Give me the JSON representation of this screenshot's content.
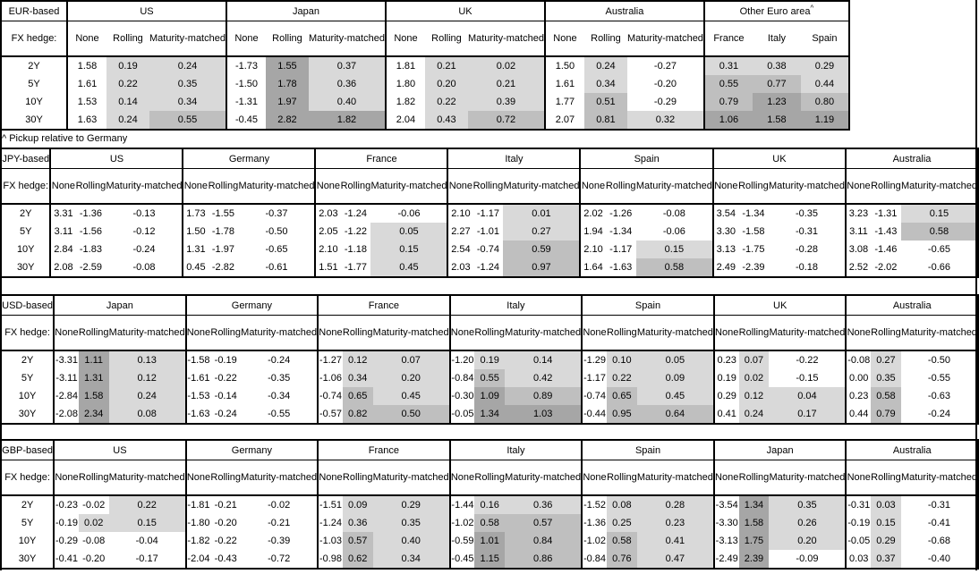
{
  "note": "^ Pickup relative to Germany",
  "hedge_label": "FX hedge:",
  "tenors": [
    "2Y",
    "5Y",
    "10Y",
    "30Y"
  ],
  "heatmap": {
    "light": "#d9d9d9",
    "medium": "#bfbfbf",
    "dark": "#a6a6a6",
    "light_min": 0,
    "medium_min": 0.5,
    "dark_min": 1.0
  },
  "chart_data": [
    {
      "type": "table",
      "base": "EUR-based",
      "blocks": [
        {
          "country": "US",
          "cols": [
            "None",
            "Rolling",
            "Maturity-matched"
          ],
          "shade_from": 1,
          "rows": [
            [
              "1.58",
              "0.19",
              "0.24"
            ],
            [
              "1.61",
              "0.22",
              "0.35"
            ],
            [
              "1.53",
              "0.14",
              "0.34"
            ],
            [
              "1.63",
              "0.24",
              "0.55"
            ]
          ]
        },
        {
          "country": "Japan",
          "cols": [
            "None",
            "Rolling",
            "Maturity-matched"
          ],
          "shade_from": 1,
          "rows": [
            [
              "-1.73",
              "1.55",
              "0.37"
            ],
            [
              "-1.50",
              "1.78",
              "0.36"
            ],
            [
              "-1.31",
              "1.97",
              "0.40"
            ],
            [
              "-0.45",
              "2.82",
              "1.82"
            ]
          ]
        },
        {
          "country": "UK",
          "cols": [
            "None",
            "Rolling",
            "Maturity-matched"
          ],
          "shade_from": 1,
          "rows": [
            [
              "1.81",
              "0.21",
              "0.02"
            ],
            [
              "1.80",
              "0.20",
              "0.21"
            ],
            [
              "1.82",
              "0.22",
              "0.39"
            ],
            [
              "2.04",
              "0.43",
              "0.72"
            ]
          ]
        },
        {
          "country": "Australia",
          "cols": [
            "None",
            "Rolling",
            "Maturity-matched"
          ],
          "shade_from": 1,
          "rows": [
            [
              "1.50",
              "0.24",
              "-0.27"
            ],
            [
              "1.61",
              "0.34",
              "-0.20"
            ],
            [
              "1.77",
              "0.51",
              "-0.29"
            ],
            [
              "2.07",
              "0.81",
              "0.32"
            ]
          ]
        },
        {
          "country": "Other Euro area",
          "superscript": "^",
          "cols": [
            "France",
            "Italy",
            "Spain"
          ],
          "shade_from": 0,
          "rows": [
            [
              "0.31",
              "0.38",
              "0.29"
            ],
            [
              "0.55",
              "0.77",
              "0.44"
            ],
            [
              "0.79",
              "1.23",
              "0.80"
            ],
            [
              "1.06",
              "1.58",
              "1.19"
            ]
          ]
        }
      ]
    },
    {
      "type": "table",
      "base": "JPY-based",
      "blocks": [
        {
          "country": "US",
          "cols": [
            "None",
            "Rolling",
            "Maturity-matched"
          ],
          "shade_from": 1,
          "rows": [
            [
              "3.31",
              "-1.36",
              "-0.13"
            ],
            [
              "3.11",
              "-1.56",
              "-0.12"
            ],
            [
              "2.84",
              "-1.83",
              "-0.24"
            ],
            [
              "2.08",
              "-2.59",
              "-0.08"
            ]
          ]
        },
        {
          "country": "Germany",
          "cols": [
            "None",
            "Rolling",
            "Maturity-matched"
          ],
          "shade_from": 1,
          "rows": [
            [
              "1.73",
              "-1.55",
              "-0.37"
            ],
            [
              "1.50",
              "-1.78",
              "-0.50"
            ],
            [
              "1.31",
              "-1.97",
              "-0.65"
            ],
            [
              "0.45",
              "-2.82",
              "-0.61"
            ]
          ]
        },
        {
          "country": "France",
          "cols": [
            "None",
            "Rolling",
            "Maturity-matched"
          ],
          "shade_from": 1,
          "rows": [
            [
              "2.03",
              "-1.24",
              "-0.06"
            ],
            [
              "2.05",
              "-1.22",
              "0.05"
            ],
            [
              "2.10",
              "-1.18",
              "0.15"
            ],
            [
              "1.51",
              "-1.77",
              "0.45"
            ]
          ]
        },
        {
          "country": "Italy",
          "cols": [
            "None",
            "Rolling",
            "Maturity-matched"
          ],
          "shade_from": 1,
          "rows": [
            [
              "2.10",
              "-1.17",
              "0.01"
            ],
            [
              "2.27",
              "-1.01",
              "0.27"
            ],
            [
              "2.54",
              "-0.74",
              "0.59"
            ],
            [
              "2.03",
              "-1.24",
              "0.97"
            ]
          ]
        },
        {
          "country": "Spain",
          "cols": [
            "None",
            "Rolling",
            "Maturity-matched"
          ],
          "shade_from": 1,
          "rows": [
            [
              "2.02",
              "-1.26",
              "-0.08"
            ],
            [
              "1.94",
              "-1.34",
              "-0.06"
            ],
            [
              "2.10",
              "-1.17",
              "0.15"
            ],
            [
              "1.64",
              "-1.63",
              "0.58"
            ]
          ]
        },
        {
          "country": "UK",
          "cols": [
            "None",
            "Rolling",
            "Maturity-matched"
          ],
          "shade_from": 1,
          "rows": [
            [
              "3.54",
              "-1.34",
              "-0.35"
            ],
            [
              "3.30",
              "-1.58",
              "-0.31"
            ],
            [
              "3.13",
              "-1.75",
              "-0.28"
            ],
            [
              "2.49",
              "-2.39",
              "-0.18"
            ]
          ]
        },
        {
          "country": "Australia",
          "cols": [
            "None",
            "Rolling",
            "Maturity-matched"
          ],
          "shade_from": 1,
          "rows": [
            [
              "3.23",
              "-1.31",
              "0.15"
            ],
            [
              "3.11",
              "-1.43",
              "0.58"
            ],
            [
              "3.08",
              "-1.46",
              "-0.65"
            ],
            [
              "2.52",
              "-2.02",
              "-0.66"
            ]
          ]
        }
      ]
    },
    {
      "type": "table",
      "base": "USD-based",
      "blocks": [
        {
          "country": "Japan",
          "cols": [
            "None",
            "Rolling",
            "Maturity-matched"
          ],
          "shade_from": 1,
          "rows": [
            [
              "-3.31",
              "1.11",
              "0.13"
            ],
            [
              "-3.11",
              "1.31",
              "0.12"
            ],
            [
              "-2.84",
              "1.58",
              "0.24"
            ],
            [
              "-2.08",
              "2.34",
              "0.08"
            ]
          ]
        },
        {
          "country": "Germany",
          "cols": [
            "None",
            "Rolling",
            "Maturity-matched"
          ],
          "shade_from": 1,
          "rows": [
            [
              "-1.58",
              "-0.19",
              "-0.24"
            ],
            [
              "-1.61",
              "-0.22",
              "-0.35"
            ],
            [
              "-1.53",
              "-0.14",
              "-0.34"
            ],
            [
              "-1.63",
              "-0.24",
              "-0.55"
            ]
          ]
        },
        {
          "country": "France",
          "cols": [
            "None",
            "Rolling",
            "Maturity-matched"
          ],
          "shade_from": 1,
          "rows": [
            [
              "-1.27",
              "0.12",
              "0.07"
            ],
            [
              "-1.06",
              "0.34",
              "0.20"
            ],
            [
              "-0.74",
              "0.65",
              "0.45"
            ],
            [
              "-0.57",
              "0.82",
              "0.50"
            ]
          ]
        },
        {
          "country": "Italy",
          "cols": [
            "None",
            "Rolling",
            "Maturity-matched"
          ],
          "shade_from": 1,
          "rows": [
            [
              "-1.20",
              "0.19",
              "0.14"
            ],
            [
              "-0.84",
              "0.55",
              "0.42"
            ],
            [
              "-0.30",
              "1.09",
              "0.89"
            ],
            [
              "-0.05",
              "1.34",
              "1.03"
            ]
          ]
        },
        {
          "country": "Spain",
          "cols": [
            "None",
            "Rolling",
            "Maturity-matched"
          ],
          "shade_from": 1,
          "rows": [
            [
              "-1.29",
              "0.10",
              "0.05"
            ],
            [
              "-1.17",
              "0.22",
              "0.09"
            ],
            [
              "-0.74",
              "0.65",
              "0.45"
            ],
            [
              "-0.44",
              "0.95",
              "0.64"
            ]
          ]
        },
        {
          "country": "UK",
          "cols": [
            "None",
            "Rolling",
            "Maturity-matched"
          ],
          "shade_from": 1,
          "rows": [
            [
              "0.23",
              "0.07",
              "-0.22"
            ],
            [
              "0.19",
              "0.02",
              "-0.15"
            ],
            [
              "0.29",
              "0.12",
              "0.04"
            ],
            [
              "0.41",
              "0.24",
              "0.17"
            ]
          ]
        },
        {
          "country": "Australia",
          "cols": [
            "None",
            "Rolling",
            "Maturity-matched"
          ],
          "shade_from": 1,
          "rows": [
            [
              "-0.08",
              "0.27",
              "-0.50"
            ],
            [
              "0.00",
              "0.35",
              "-0.55"
            ],
            [
              "0.23",
              "0.58",
              "-0.63"
            ],
            [
              "0.44",
              "0.79",
              "-0.24"
            ]
          ]
        }
      ]
    },
    {
      "type": "table",
      "base": "GBP-based",
      "blocks": [
        {
          "country": "US",
          "cols": [
            "None",
            "Rolling",
            "Maturity-matched"
          ],
          "shade_from": 1,
          "rows": [
            [
              "-0.23",
              "-0.02",
              "0.22"
            ],
            [
              "-0.19",
              "0.02",
              "0.15"
            ],
            [
              "-0.29",
              "-0.08",
              "-0.04"
            ],
            [
              "-0.41",
              "-0.20",
              "-0.17"
            ]
          ]
        },
        {
          "country": "Germany",
          "cols": [
            "None",
            "Rolling",
            "Maturity-matched"
          ],
          "shade_from": 1,
          "rows": [
            [
              "-1.81",
              "-0.21",
              "-0.02"
            ],
            [
              "-1.80",
              "-0.20",
              "-0.21"
            ],
            [
              "-1.82",
              "-0.22",
              "-0.39"
            ],
            [
              "-2.04",
              "-0.43",
              "-0.72"
            ]
          ]
        },
        {
          "country": "France",
          "cols": [
            "None",
            "Rolling",
            "Maturity-matched"
          ],
          "shade_from": 1,
          "rows": [
            [
              "-1.51",
              "0.09",
              "0.29"
            ],
            [
              "-1.24",
              "0.36",
              "0.35"
            ],
            [
              "-1.03",
              "0.57",
              "0.40"
            ],
            [
              "-0.98",
              "0.62",
              "0.34"
            ]
          ]
        },
        {
          "country": "Italy",
          "cols": [
            "None",
            "Rolling",
            "Maturity-matched"
          ],
          "shade_from": 1,
          "rows": [
            [
              "-1.44",
              "0.16",
              "0.36"
            ],
            [
              "-1.02",
              "0.58",
              "0.57"
            ],
            [
              "-0.59",
              "1.01",
              "0.84"
            ],
            [
              "-0.45",
              "1.15",
              "0.86"
            ]
          ]
        },
        {
          "country": "Spain",
          "cols": [
            "None",
            "Rolling",
            "Maturity-matched"
          ],
          "shade_from": 1,
          "rows": [
            [
              "-1.52",
              "0.08",
              "0.28"
            ],
            [
              "-1.36",
              "0.25",
              "0.23"
            ],
            [
              "-1.02",
              "0.58",
              "0.41"
            ],
            [
              "-0.84",
              "0.76",
              "0.47"
            ]
          ]
        },
        {
          "country": "Japan",
          "cols": [
            "None",
            "Rolling",
            "Maturity-matched"
          ],
          "shade_from": 1,
          "rows": [
            [
              "-3.54",
              "1.34",
              "0.35"
            ],
            [
              "-3.30",
              "1.58",
              "0.26"
            ],
            [
              "-3.13",
              "1.75",
              "0.20"
            ],
            [
              "-2.49",
              "2.39",
              "-0.09"
            ]
          ]
        },
        {
          "country": "Australia",
          "cols": [
            "None",
            "Rolling",
            "Maturity-matched"
          ],
          "shade_from": 1,
          "rows": [
            [
              "-0.31",
              "0.03",
              "-0.31"
            ],
            [
              "-0.19",
              "0.15",
              "-0.41"
            ],
            [
              "-0.05",
              "0.29",
              "-0.68"
            ],
            [
              "0.03",
              "0.37",
              "-0.40"
            ]
          ]
        }
      ]
    }
  ]
}
